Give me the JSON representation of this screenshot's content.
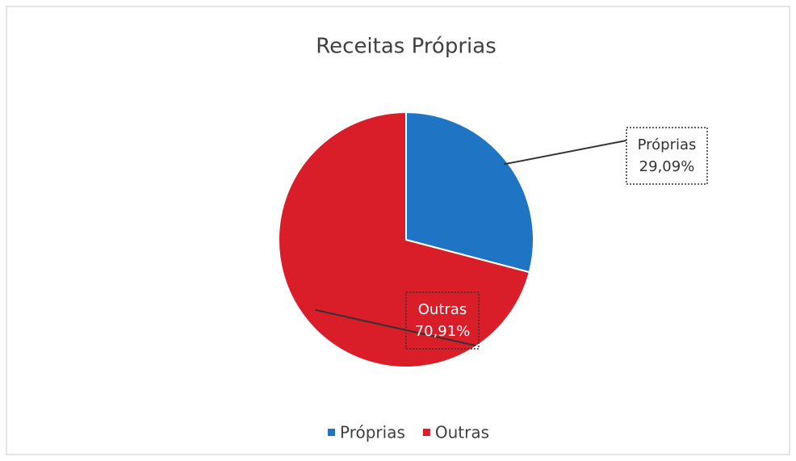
{
  "chart_data": {
    "type": "pie",
    "title": "Receitas Próprias",
    "categories": [
      "Próprias",
      "Outras"
    ],
    "values": [
      29.09,
      70.91
    ],
    "value_labels": [
      "29,09%",
      "70,91%"
    ],
    "colors": [
      "#1f74c4",
      "#d91e2a"
    ],
    "legend": "bottom"
  }
}
